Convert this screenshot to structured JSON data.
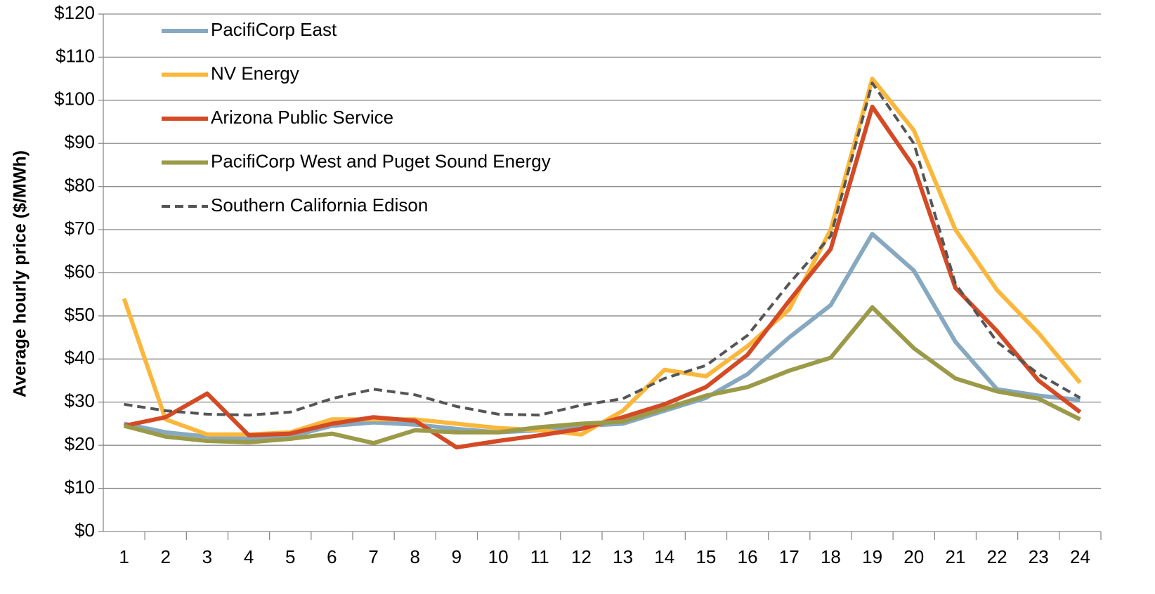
{
  "chart_data": {
    "type": "line",
    "y_label": "Average hourly price ($/MWh)",
    "categories": [
      "1",
      "2",
      "3",
      "4",
      "5",
      "6",
      "7",
      "8",
      "9",
      "10",
      "11",
      "12",
      "13",
      "14",
      "15",
      "16",
      "17",
      "18",
      "19",
      "20",
      "21",
      "22",
      "23",
      "24"
    ],
    "ylim": [
      0,
      120
    ],
    "yticks": [
      {
        "value": 0,
        "label": "$0"
      },
      {
        "value": 10,
        "label": "$10"
      },
      {
        "value": 20,
        "label": "$20"
      },
      {
        "value": 30,
        "label": "$30"
      },
      {
        "value": 40,
        "label": "$40"
      },
      {
        "value": 50,
        "label": "$50"
      },
      {
        "value": 60,
        "label": "$60"
      },
      {
        "value": 70,
        "label": "$70"
      },
      {
        "value": 80,
        "label": "$80"
      },
      {
        "value": 90,
        "label": "$90"
      },
      {
        "value": 100,
        "label": "$100"
      },
      {
        "value": 110,
        "label": "$110"
      },
      {
        "value": 120,
        "label": "$120"
      }
    ],
    "grid": true,
    "legend": "top-left",
    "series": [
      {
        "name": "PacifiCorp East",
        "color": "#86a8c0",
        "dashed": false,
        "values": [
          25,
          23,
          22,
          21.5,
          22,
          24.5,
          25.3,
          24.8,
          23.8,
          23,
          23.5,
          24.5,
          25,
          28,
          31,
          36.5,
          45,
          52.5,
          69,
          60.5,
          44,
          33,
          31.5,
          30.5
        ]
      },
      {
        "name": "NV Energy",
        "color": "#fbb73b",
        "dashed": false,
        "values": [
          54,
          26,
          22.5,
          22.5,
          23,
          26,
          26,
          26,
          25,
          24,
          23.5,
          22.5,
          28,
          37.5,
          36,
          43,
          51.5,
          70,
          105,
          93,
          70,
          56,
          46,
          34.5
        ]
      },
      {
        "name": "Arizona Public Service",
        "color": "#d44a25",
        "dashed": false,
        "values": [
          24.5,
          26.5,
          32,
          22.3,
          22.7,
          25,
          26.5,
          25.7,
          19.5,
          21,
          22.3,
          23.8,
          26.5,
          29.5,
          33.5,
          41,
          53.5,
          65.5,
          98.5,
          84.5,
          56.5,
          46.5,
          35,
          27.7
        ]
      },
      {
        "name": "PacifiCorp West and Puget Sound Energy",
        "color": "#9b9a48",
        "dashed": false,
        "values": [
          24.5,
          22,
          21,
          20.7,
          21.5,
          22.7,
          20.5,
          23.5,
          23,
          23,
          24.2,
          25,
          25.5,
          28.5,
          31.5,
          33.5,
          37.3,
          40.3,
          52,
          42.5,
          35.5,
          32.5,
          30.8,
          26
        ]
      },
      {
        "name": "Southern California Edison",
        "color": "#555555",
        "dashed": true,
        "values": [
          29.5,
          28,
          27.2,
          27,
          27.7,
          30.8,
          33,
          31.7,
          29,
          27.2,
          27,
          29.3,
          30.8,
          35.5,
          38.5,
          45.5,
          57.5,
          68.5,
          104,
          90,
          57.5,
          44,
          36.5,
          31
        ]
      }
    ]
  }
}
